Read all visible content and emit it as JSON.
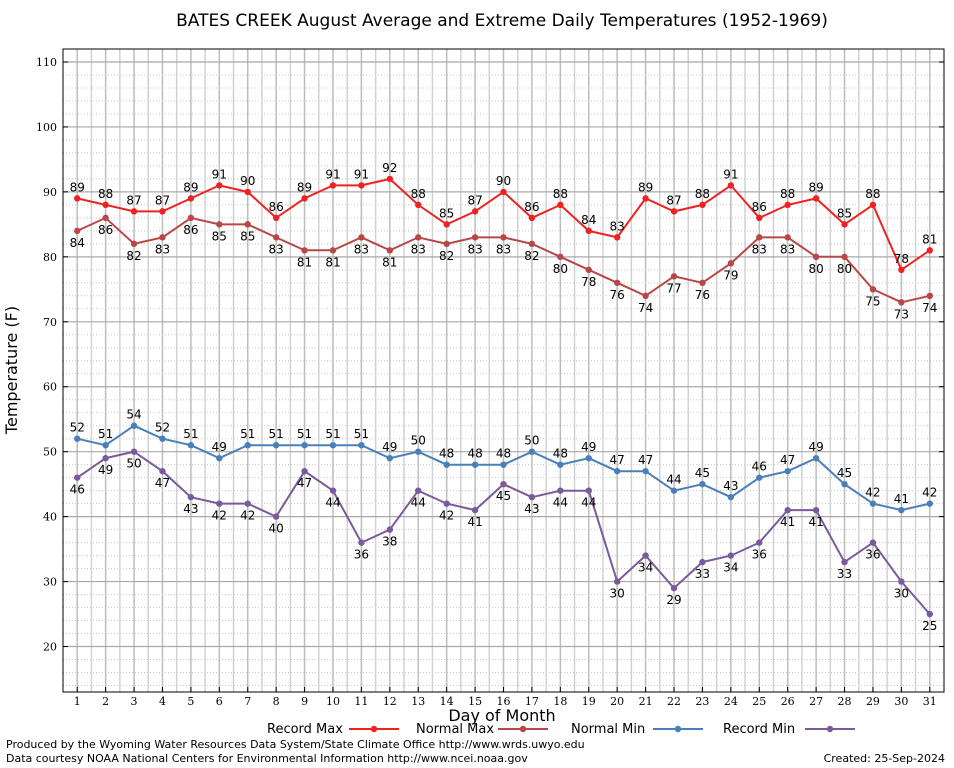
{
  "chart_data": {
    "type": "line",
    "title": "BATES CREEK August Average and Extreme Daily Temperatures (1952-1969)",
    "xlabel": "Day of Month",
    "ylabel": "Temperature (F)",
    "x": [
      1,
      2,
      3,
      4,
      5,
      6,
      7,
      8,
      9,
      10,
      11,
      12,
      13,
      14,
      15,
      16,
      17,
      18,
      19,
      20,
      21,
      22,
      23,
      24,
      25,
      26,
      27,
      28,
      29,
      30,
      31
    ],
    "xlim": [
      0.5,
      31.5
    ],
    "ylim": [
      13,
      112
    ],
    "yticks": [
      20,
      30,
      40,
      50,
      60,
      70,
      80,
      90,
      100,
      110
    ],
    "grid": true,
    "legend_position": "bottom",
    "series": [
      {
        "name": "Record Max",
        "color": "#ee2222",
        "values": [
          89,
          88,
          87,
          87,
          89,
          91,
          90,
          86,
          89,
          91,
          91,
          92,
          88,
          85,
          87,
          90,
          86,
          88,
          84,
          83,
          89,
          87,
          88,
          91,
          86,
          88,
          89,
          85,
          88,
          78,
          81
        ]
      },
      {
        "name": "Normal Max",
        "color": "#b84848",
        "values": [
          84,
          86,
          82,
          83,
          86,
          85,
          85,
          83,
          81,
          81,
          83,
          81,
          83,
          82,
          83,
          83,
          82,
          80,
          78,
          76,
          74,
          77,
          76,
          79,
          83,
          83,
          80,
          80,
          75,
          73,
          74
        ]
      },
      {
        "name": "Normal Min",
        "color": "#4a80b8",
        "values": [
          52,
          51,
          54,
          52,
          51,
          49,
          51,
          51,
          51,
          51,
          51,
          49,
          50,
          48,
          48,
          48,
          50,
          48,
          49,
          47,
          47,
          44,
          45,
          43,
          46,
          47,
          49,
          45,
          42,
          41,
          42
        ]
      },
      {
        "name": "Record Min",
        "color": "#7a5a9a",
        "values": [
          46,
          49,
          50,
          47,
          43,
          42,
          42,
          40,
          47,
          44,
          36,
          38,
          44,
          42,
          41,
          45,
          43,
          44,
          44,
          30,
          34,
          29,
          33,
          34,
          36,
          41,
          41,
          33,
          36,
          30,
          25
        ]
      }
    ]
  },
  "footer": {
    "produced_by": "Produced by the Wyoming Water Resources Data System/State Climate Office http://www.wrds.uwyo.edu",
    "courtesy": "Data courtesy NOAA National Centers for Environmental Information http://www.ncei.noaa.gov",
    "created": "Created:  25-Sep-2024"
  }
}
